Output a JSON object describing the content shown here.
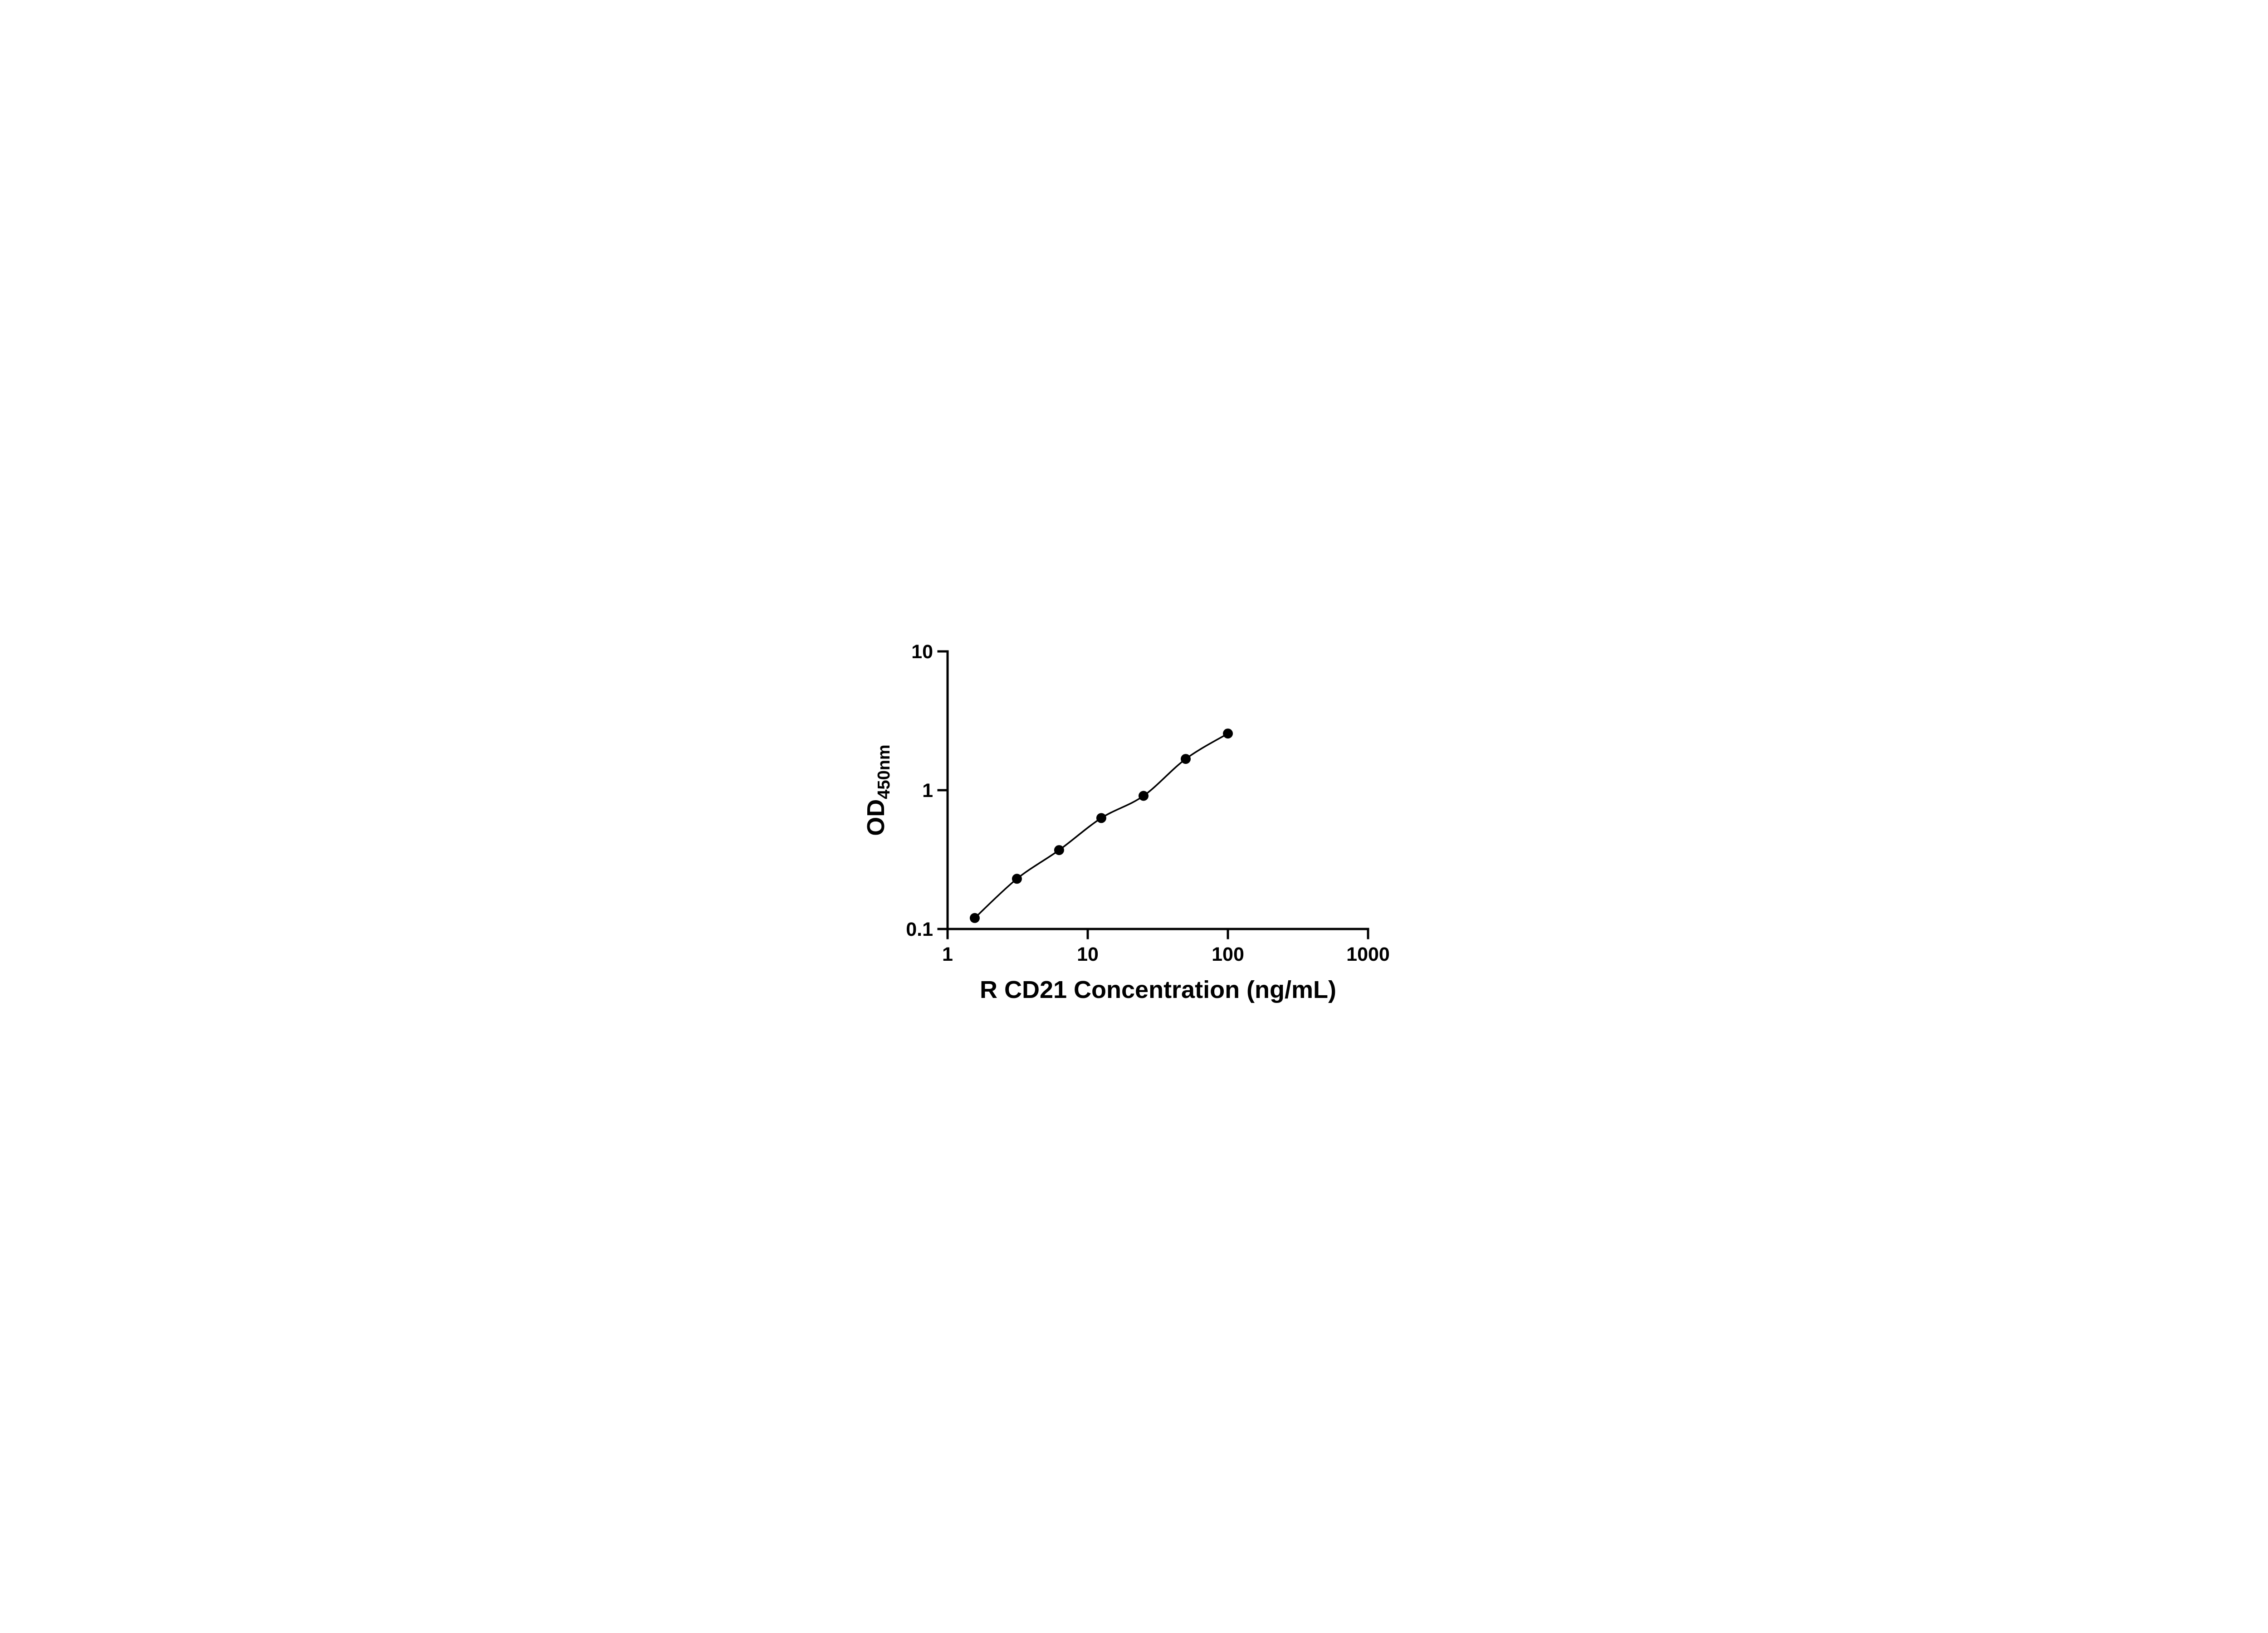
{
  "figure": {
    "background": "#ffffff"
  },
  "chart_data": {
    "type": "scatter",
    "title": "",
    "xlabel": "R CD21 Concentration (ng/mL)",
    "ylabel_base": "OD",
    "ylabel_sub": "450nm",
    "x_scale": "log",
    "y_scale": "log",
    "xlim": [
      1,
      1000
    ],
    "ylim": [
      0.1,
      10
    ],
    "x_ticks": [
      1,
      10,
      100,
      1000
    ],
    "x_tick_labels": [
      "1",
      "10",
      "100",
      "1000"
    ],
    "y_ticks": [
      0.1,
      1,
      10
    ],
    "y_tick_labels": [
      "0.1",
      "1",
      "10"
    ],
    "grid": false,
    "legend": false,
    "axis_color": "#000000",
    "series": [
      {
        "x": [
          1.5625,
          3.125,
          6.25,
          12.5,
          25,
          50,
          100
        ],
        "y": [
          0.12,
          0.23,
          0.37,
          0.63,
          0.91,
          1.68,
          2.56
        ],
        "marker": "circle",
        "marker_color": "#000000",
        "line_color": "#000000",
        "connect": "smooth"
      }
    ]
  }
}
